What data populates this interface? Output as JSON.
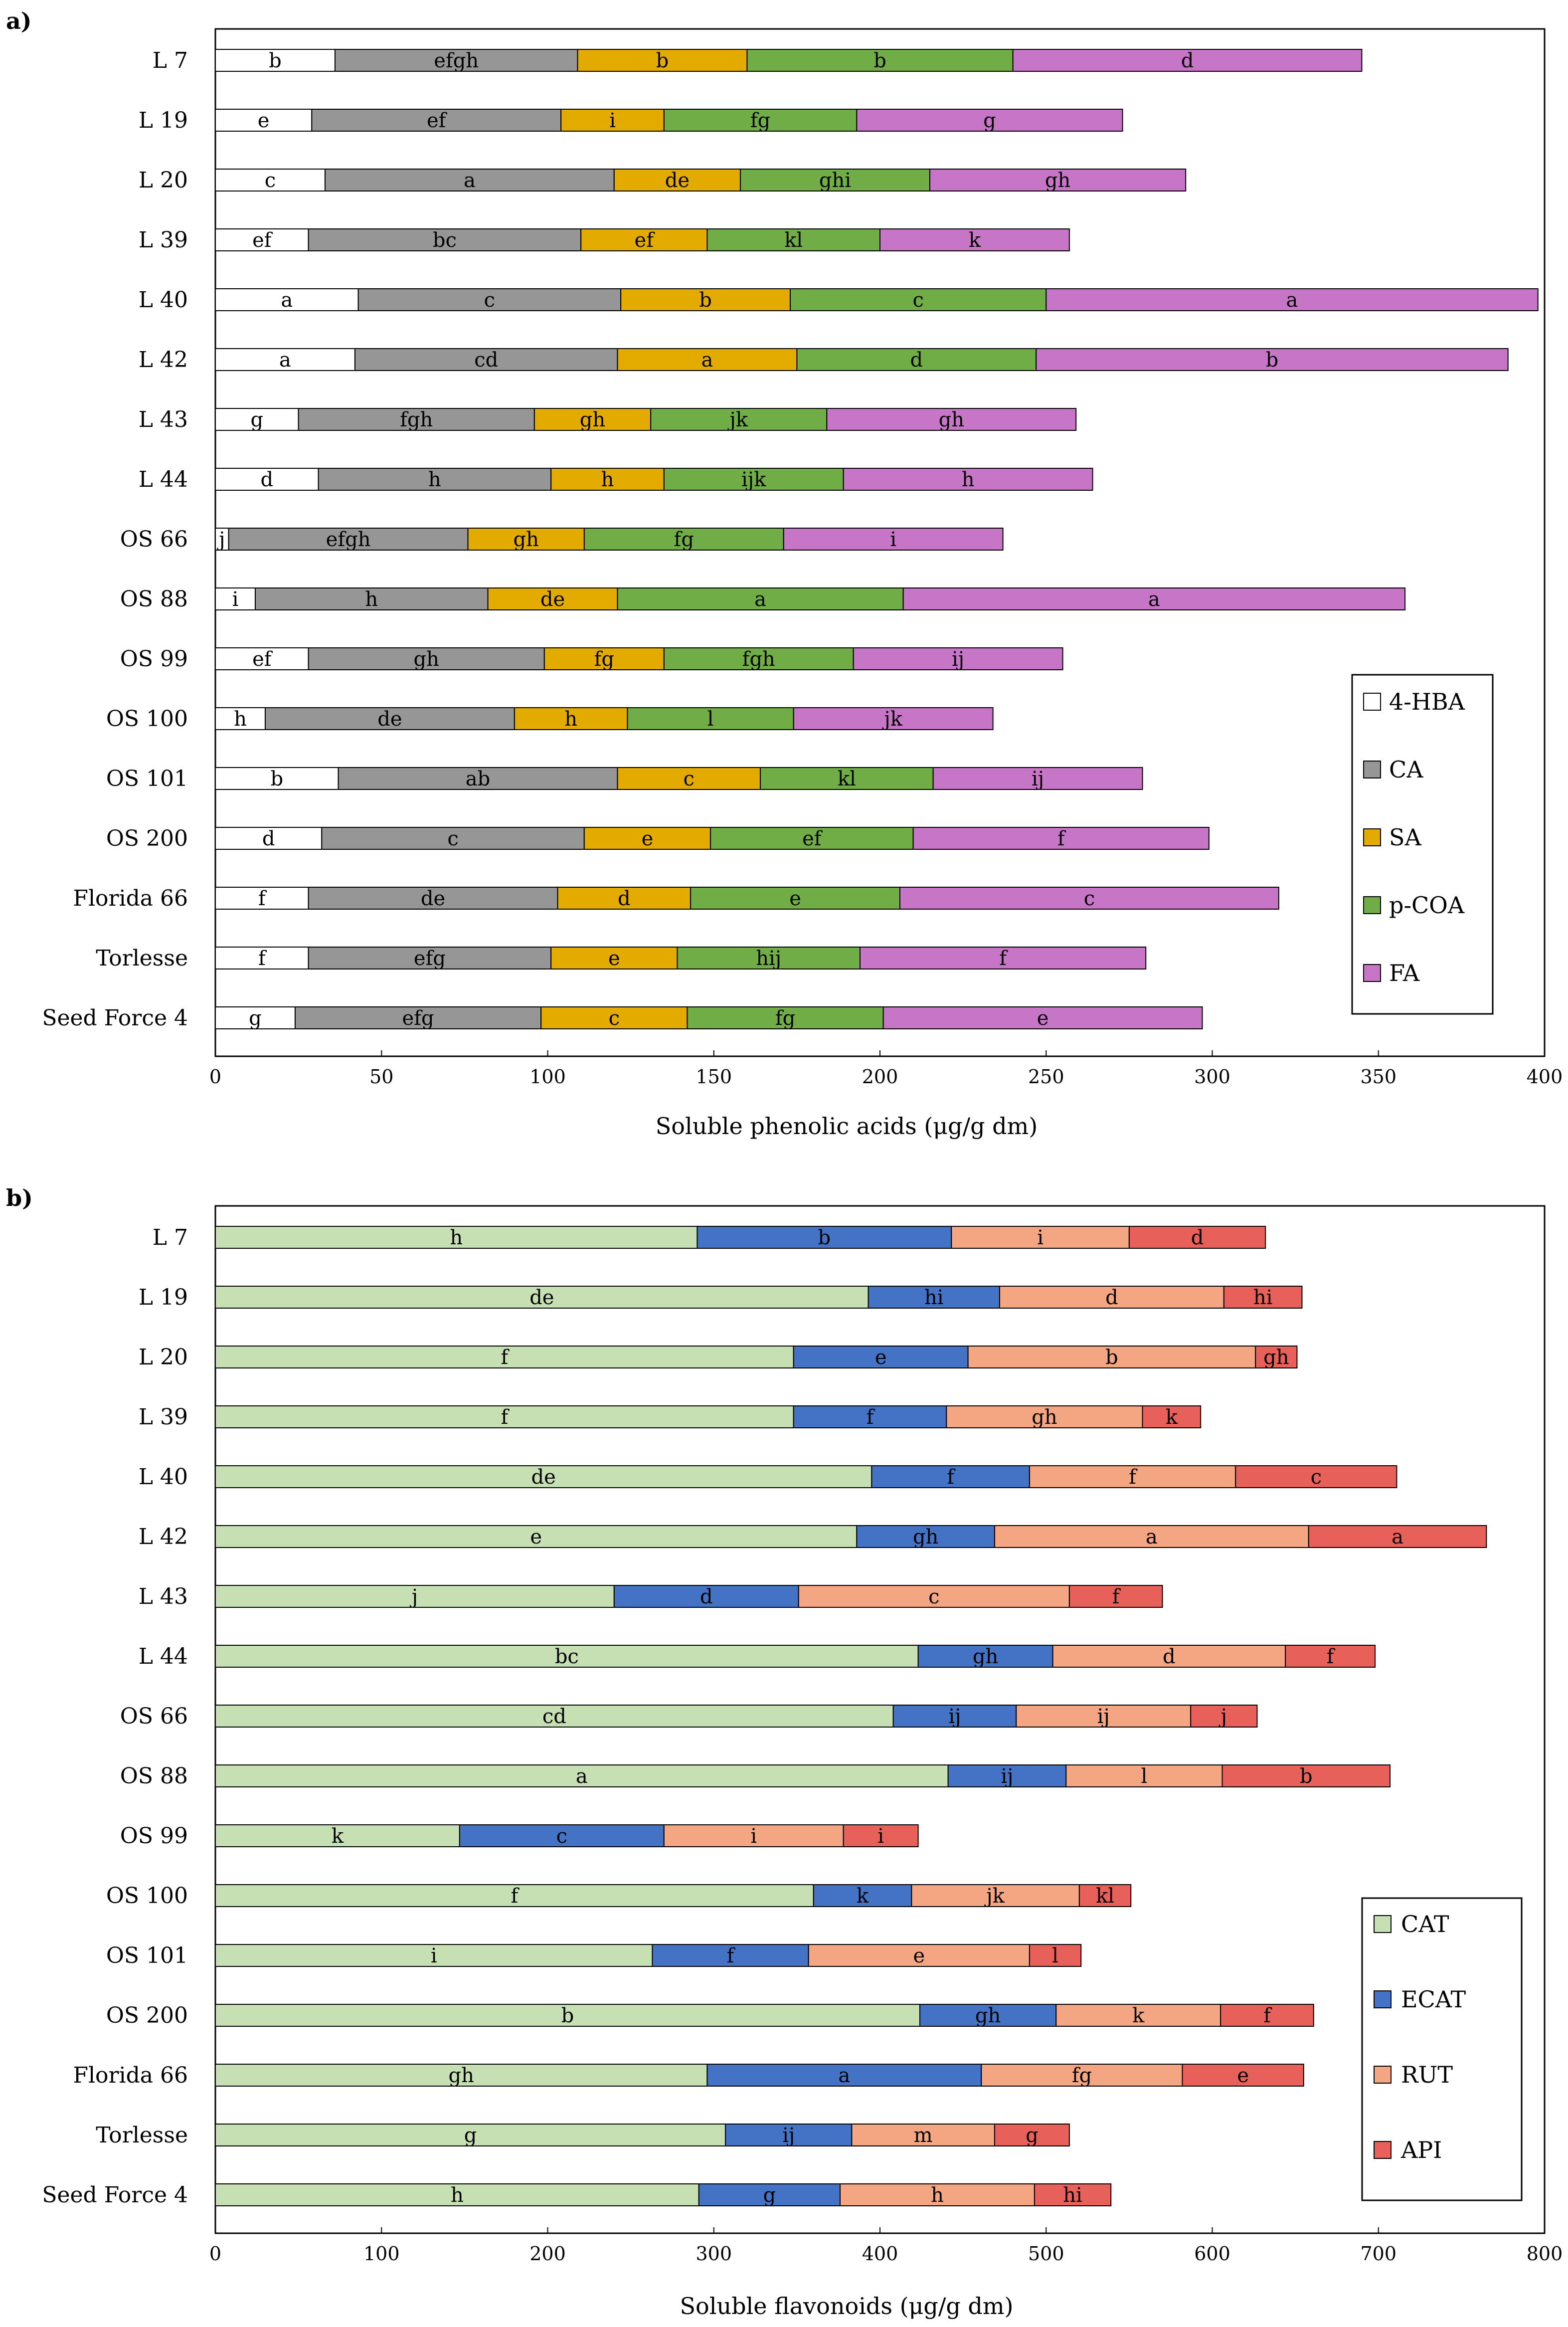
{
  "chart_data": [
    {
      "panel": "a)",
      "type": "bar",
      "orientation": "horizontal",
      "stacked": true,
      "xlabel": "Soluble phenolic acids (μg/g dm)",
      "xlim": [
        0,
        400
      ],
      "xticks": [
        0,
        50,
        100,
        150,
        200,
        250,
        300,
        350,
        400
      ],
      "legend_position": "bottom-right",
      "categories": [
        "L 7",
        "L 19",
        "L 20",
        "L 39",
        "L 40",
        "L 42",
        "L 43",
        "L 44",
        "OS 66",
        "OS 88",
        "OS 99",
        "OS 100",
        "OS 101",
        "OS 200",
        "Florida 66",
        "Torlesse",
        "Seed Force 4"
      ],
      "series": [
        {
          "name": "4-HBA",
          "color": "#ffffff",
          "values": [
            36,
            29,
            33,
            28,
            43,
            42,
            25,
            31,
            4,
            12,
            28,
            15,
            37,
            32,
            28,
            28,
            24
          ],
          "letters": [
            "b",
            "e",
            "c",
            "ef",
            "a",
            "a",
            "g",
            "d",
            "j",
            "i",
            "ef",
            "h",
            "b",
            "d",
            "f",
            "f",
            "g"
          ]
        },
        {
          "name": "CA",
          "color": "#969696",
          "values": [
            73,
            75,
            87,
            82,
            79,
            79,
            71,
            70,
            72,
            70,
            71,
            75,
            84,
            79,
            75,
            73,
            74
          ],
          "letters": [
            "efgh",
            "ef",
            "a",
            "bc",
            "c",
            "cd",
            "fgh",
            "h",
            "efgh",
            "h",
            "gh",
            "de",
            "ab",
            "c",
            "de",
            "efg",
            "efg"
          ]
        },
        {
          "name": "SA",
          "color": "#e3aa00",
          "values": [
            51,
            31,
            38,
            38,
            51,
            54,
            35,
            34,
            35,
            39,
            36,
            34,
            43,
            38,
            40,
            38,
            44
          ],
          "letters": [
            "b",
            "i",
            "de",
            "ef",
            "b",
            "a",
            "gh",
            "h",
            "gh",
            "de",
            "fg",
            "h",
            "c",
            "e",
            "d",
            "e",
            "c"
          ]
        },
        {
          "name": "p-COA",
          "color": "#70ad47",
          "values": [
            80,
            58,
            57,
            52,
            77,
            72,
            53,
            54,
            60,
            86,
            57,
            50,
            52,
            61,
            63,
            55,
            59
          ],
          "letters": [
            "b",
            "fg",
            "ghi",
            "kl",
            "c",
            "d",
            "jk",
            "ijk",
            "fg",
            "a",
            "fgh",
            "l",
            "kl",
            "ef",
            "e",
            "hij",
            "fg"
          ]
        },
        {
          "name": "FA",
          "color": "#c776c7",
          "values": [
            105,
            80,
            77,
            57,
            148,
            142,
            75,
            75,
            66,
            151,
            63,
            60,
            63,
            89,
            114,
            86,
            96
          ],
          "letters": [
            "d",
            "g",
            "gh",
            "k",
            "a",
            "b",
            "gh",
            "h",
            "i",
            "a",
            "ij",
            "jk",
            "ij",
            "f",
            "c",
            "f",
            "e"
          ]
        }
      ]
    },
    {
      "panel": "b)",
      "type": "bar",
      "orientation": "horizontal",
      "stacked": true,
      "xlabel": "Soluble flavonoids (μg/g dm)",
      "xlim": [
        0,
        800
      ],
      "xticks": [
        0,
        100,
        200,
        300,
        400,
        500,
        600,
        700,
        800
      ],
      "legend_position": "bottom-right",
      "categories": [
        "L 7",
        "L 19",
        "L 20",
        "L 39",
        "L 40",
        "L 42",
        "L 43",
        "L 44",
        "OS 66",
        "OS 88",
        "OS 99",
        "OS 100",
        "OS 101",
        "OS 200",
        "Florida 66",
        "Torlesse",
        "Seed Force 4"
      ],
      "series": [
        {
          "name": "CAT",
          "color": "#c6e0b4",
          "values": [
            290,
            393,
            348,
            348,
            395,
            386,
            240,
            423,
            408,
            441,
            147,
            360,
            263,
            424,
            296,
            307,
            291
          ],
          "letters": [
            "h",
            "de",
            "f",
            "f",
            "de",
            "e",
            "j",
            "bc",
            "cd",
            "a",
            "k",
            "f",
            "i",
            "b",
            "gh",
            "g",
            "h"
          ]
        },
        {
          "name": "ECAT",
          "color": "#4472c4",
          "values": [
            153,
            79,
            105,
            92,
            95,
            83,
            111,
            81,
            74,
            71,
            123,
            59,
            94,
            82,
            165,
            76,
            85
          ],
          "letters": [
            "b",
            "hi",
            "e",
            "f",
            "f",
            "gh",
            "d",
            "gh",
            "ij",
            "ij",
            "c",
            "k",
            "f",
            "gh",
            "a",
            "ij",
            "g"
          ]
        },
        {
          "name": "RUT",
          "color": "#f4a582",
          "values": [
            107,
            135,
            173,
            118,
            124,
            189,
            163,
            140,
            105,
            94,
            108,
            101,
            133,
            99,
            121,
            86,
            117
          ],
          "letters": [
            "i",
            "d",
            "b",
            "gh",
            "f",
            "a",
            "c",
            "d",
            "ij",
            "l",
            "i",
            "jk",
            "e",
            "k",
            "fg",
            "m",
            "h"
          ]
        },
        {
          "name": "API",
          "color": "#e8605a",
          "values": [
            82,
            47,
            25,
            35,
            97,
            107,
            56,
            54,
            40,
            101,
            45,
            31,
            31,
            56,
            73,
            45,
            46
          ],
          "letters": [
            "d",
            "hi",
            "gh",
            "k",
            "c",
            "a",
            "f",
            "f",
            "j",
            "b",
            "i",
            "kl",
            "l",
            "f",
            "e",
            "g",
            "hi"
          ]
        }
      ]
    }
  ]
}
